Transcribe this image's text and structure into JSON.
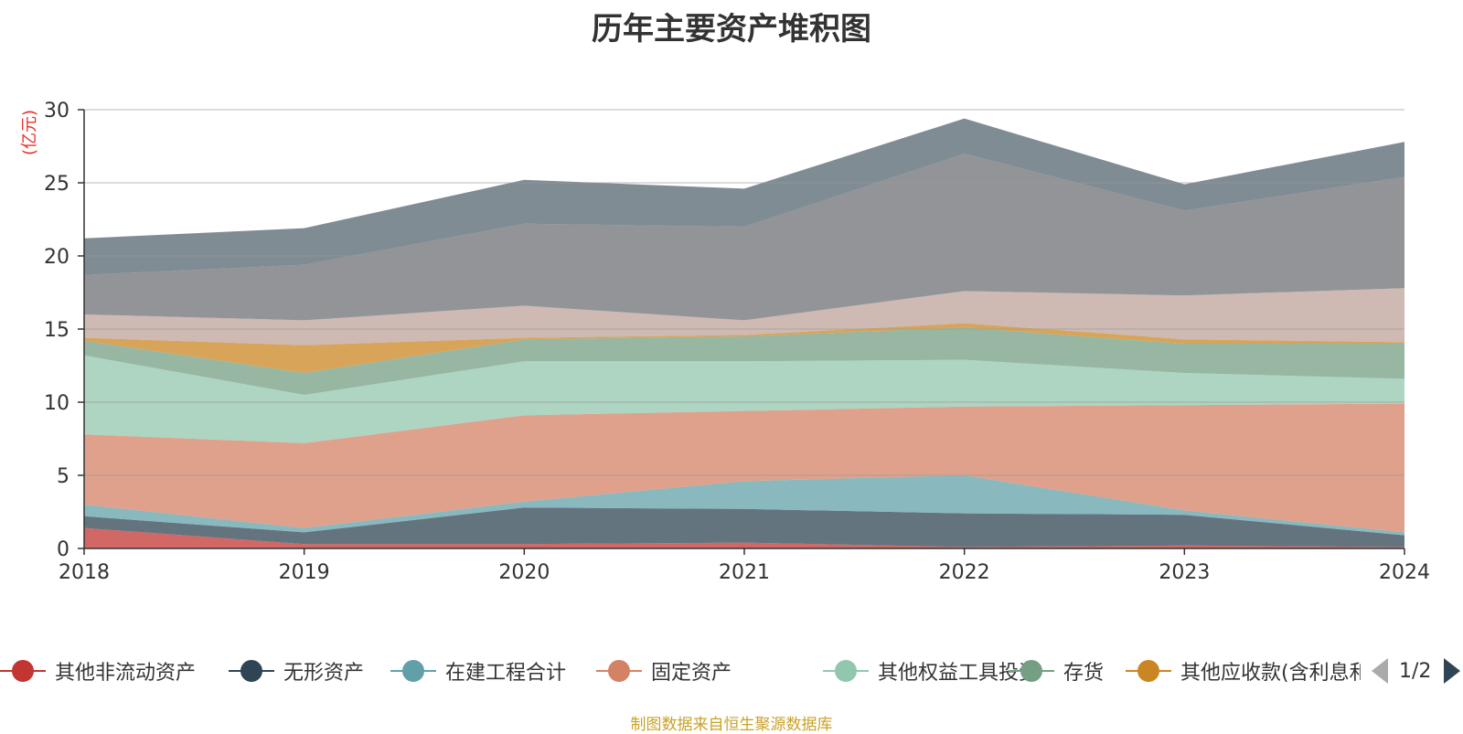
{
  "chart_data": {
    "type": "area",
    "stacked": true,
    "title": "历年主要资产堆积图",
    "ylabel": "(亿元)",
    "x": [
      "2018",
      "2019",
      "2020",
      "2021",
      "2022",
      "2023",
      "2024"
    ],
    "ylim": [
      0,
      30
    ],
    "yticks": [
      0,
      5,
      10,
      15,
      20,
      25,
      30
    ],
    "grid": true,
    "legend_position": "bottom",
    "series": [
      {
        "name": "其他非流动资产",
        "color": "#c23531",
        "values": [
          1.4,
          0.3,
          0.3,
          0.4,
          0.1,
          0.2,
          0.1
        ]
      },
      {
        "name": "无形资产",
        "color": "#2f4554",
        "values": [
          0.8,
          0.8,
          2.5,
          2.3,
          2.3,
          2.1,
          0.8
        ]
      },
      {
        "name": "在建工程合计",
        "color": "#61a0a8",
        "values": [
          0.8,
          0.3,
          0.4,
          1.9,
          2.6,
          0.3,
          0.2
        ]
      },
      {
        "name": "固定资产",
        "color": "#d48265",
        "values": [
          4.8,
          5.8,
          5.9,
          4.8,
          4.7,
          7.2,
          8.8
        ]
      },
      {
        "name": "其他权益工具投资",
        "color": "#91c7ae",
        "values": [
          5.4,
          3.3,
          3.7,
          3.4,
          3.2,
          2.2,
          1.7
        ]
      },
      {
        "name": "存货",
        "color": "#749f83",
        "values": [
          1.0,
          1.5,
          1.5,
          1.7,
          2.2,
          2.0,
          2.4
        ]
      },
      {
        "name": "其他应收款(含利息和股利)",
        "color": "#ca8622",
        "values": [
          0.2,
          1.9,
          0.1,
          0.1,
          0.3,
          0.3,
          0.1
        ]
      },
      {
        "name": "",
        "color": "#bda29a",
        "values": [
          1.6,
          1.7,
          2.2,
          1.0,
          2.2,
          3.0,
          3.7
        ]
      },
      {
        "name": "",
        "color": "#6e7074",
        "values": [
          2.7,
          3.8,
          5.6,
          6.4,
          9.4,
          5.8,
          7.6
        ]
      },
      {
        "name": "",
        "color": "#546570",
        "values": [
          2.5,
          2.5,
          3.0,
          2.6,
          2.4,
          1.8,
          2.4
        ]
      }
    ]
  },
  "legend": {
    "page_indicator": "1/2"
  },
  "source_note": "制图数据来自恒生聚源数据库"
}
